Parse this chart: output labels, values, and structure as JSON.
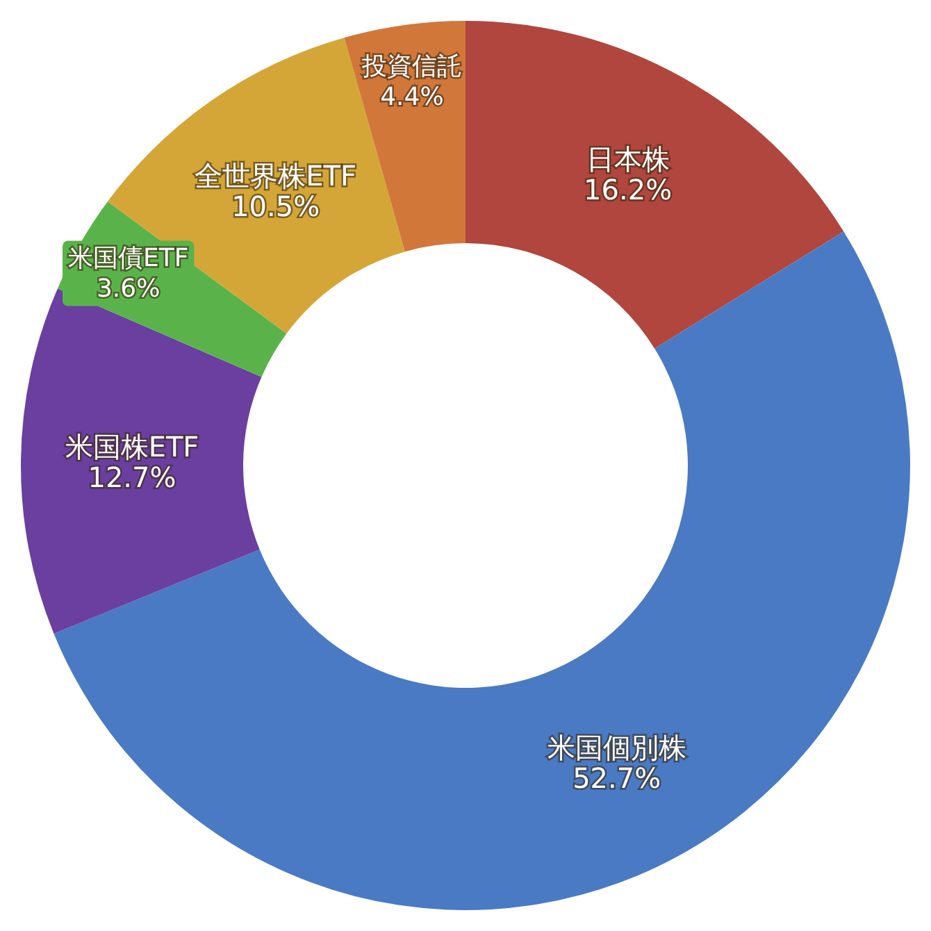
{
  "chart_data": {
    "type": "donut",
    "categories": [
      "日本株",
      "米国個別株",
      "米国株ETF",
      "米国債ETF",
      "全世界株ETF",
      "投資信託"
    ],
    "values": [
      16.2,
      52.7,
      12.7,
      3.6,
      10.5,
      4.4
    ],
    "value_labels": [
      "16.2%",
      "52.7%",
      "12.7%",
      "3.6%",
      "10.5%",
      "4.4%"
    ],
    "colors": [
      "#b0463e",
      "#4a7ac4",
      "#6a3fa0",
      "#5ab34a",
      "#d4a637",
      "#d2773a"
    ]
  }
}
